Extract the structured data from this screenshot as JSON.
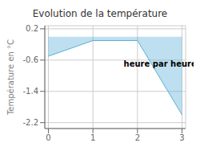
{
  "chart_data": {
    "type": "area",
    "title": "Evolution de la température",
    "y_label": "Température en °C",
    "x": [
      0,
      1,
      2,
      3
    ],
    "values": [
      -0.5,
      -0.1,
      -0.1,
      -2.0
    ],
    "color": "#5bafd6",
    "xlim": [
      -0.08,
      3.08
    ],
    "ylim": [
      -2.35,
      0.28
    ],
    "xticks": [
      0,
      1,
      2,
      3
    ],
    "yticks": [
      0.2,
      -0.6,
      -1.4,
      -2.2
    ],
    "grid": true,
    "annotations": [
      {
        "text": "heure par heure",
        "x": 1.6,
        "y": -0.7
      }
    ]
  }
}
